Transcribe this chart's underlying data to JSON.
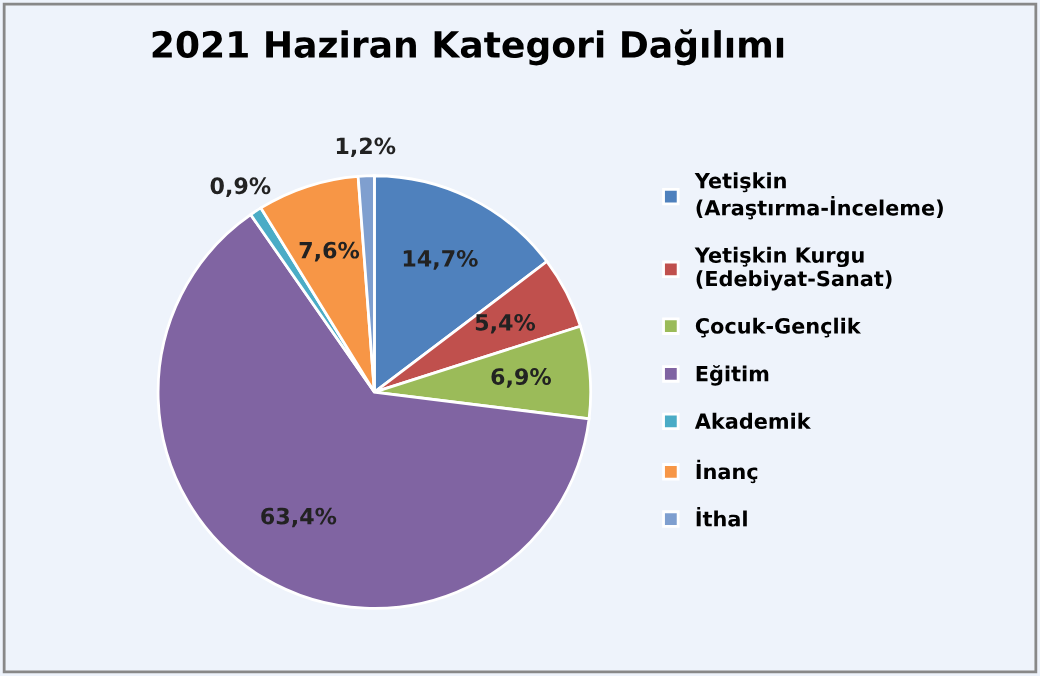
{
  "chart_data": {
    "type": "pie",
    "title": "2021 Haziran Kategori Dağılımı",
    "categories": [
      "Yetişkin\n(Araştırma-İnceleme)",
      "Yetişkin Kurgu\n(Edebiyat-Sanat)",
      "Çocuk-Gençlik",
      "Eğitim",
      "Akademik",
      "İnanç",
      "İthal"
    ],
    "values": [
      14.7,
      5.4,
      6.9,
      63.4,
      0.9,
      7.6,
      1.2
    ],
    "value_labels": [
      "14,7%",
      "5,4%",
      "6,9%",
      "63,4%",
      "0,9%",
      "7,6%",
      "1,2%"
    ],
    "colors": [
      "#4f81bd",
      "#c0504d",
      "#9bbb59",
      "#8064a2",
      "#4bacc6",
      "#f79646",
      "#7f9fcf"
    ],
    "legend": "right"
  }
}
